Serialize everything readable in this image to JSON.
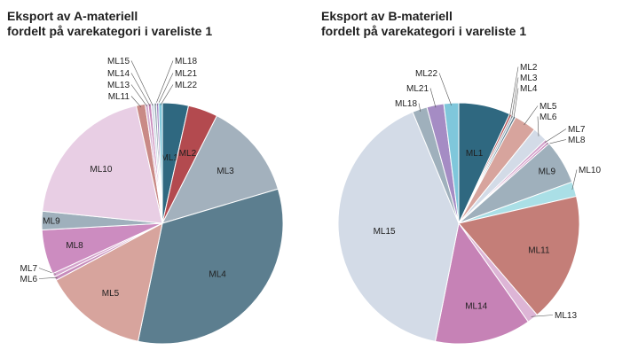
{
  "chart_data": [
    {
      "type": "pie",
      "title": [
        "Eksport av A-materiell",
        "fordelt på varekategori i vareliste 1"
      ],
      "slices": [
        {
          "label": "ML1",
          "value": 3.5,
          "color": "#2f6880"
        },
        {
          "label": "ML2",
          "value": 4.0,
          "color": "#b34a4f"
        },
        {
          "label": "ML3",
          "value": 13.0,
          "color": "#a3b1bd"
        },
        {
          "label": "ML4",
          "value": 33.0,
          "color": "#5c7e8f"
        },
        {
          "label": "ML5",
          "value": 14.0,
          "color": "#d7a49d"
        },
        {
          "label": "ML6",
          "value": 0.5,
          "color": "#c68cbc"
        },
        {
          "label": "ML7",
          "value": 0.5,
          "color": "#d4a3cc"
        },
        {
          "label": "ML8",
          "value": 6.0,
          "color": "#cc8cc0"
        },
        {
          "label": "ML9",
          "value": 2.5,
          "color": "#9fb0bc"
        },
        {
          "label": "ML10",
          "value": 20.0,
          "color": "#e8cee4"
        },
        {
          "label": "ML11",
          "value": 1.2,
          "color": "#c98a86"
        },
        {
          "label": "ML13",
          "value": 0.4,
          "color": "#d5b0d2"
        },
        {
          "label": "ML14",
          "value": 0.4,
          "color": "#c98abb"
        },
        {
          "label": "ML15",
          "value": 0.4,
          "color": "#d3dbe7"
        },
        {
          "label": "ML18",
          "value": 0.3,
          "color": "#8fa2ad"
        },
        {
          "label": "ML21",
          "value": 0.3,
          "color": "#a58cc4"
        },
        {
          "label": "ML22",
          "value": 0.5,
          "color": "#7fc7db"
        }
      ]
    },
    {
      "type": "pie",
      "title": [
        "Eksport av B-materiell",
        "fordelt på varekategori i vareliste 1"
      ],
      "slices": [
        {
          "label": "ML1",
          "value": 7.0,
          "color": "#2f6880"
        },
        {
          "label": "ML2",
          "value": 0.3,
          "color": "#b34a4f"
        },
        {
          "label": "ML3",
          "value": 0.3,
          "color": "#a3b1bd"
        },
        {
          "label": "ML4",
          "value": 0.3,
          "color": "#5c7e8f"
        },
        {
          "label": "ML5",
          "value": 3.0,
          "color": "#d7a49d"
        },
        {
          "label": "ML6",
          "value": 2.0,
          "color": "#d3dbe7"
        },
        {
          "label": "ML7",
          "value": 0.4,
          "color": "#d4a3cc"
        },
        {
          "label": "ML8",
          "value": 0.3,
          "color": "#cc8cc0"
        },
        {
          "label": "ML9",
          "value": 6.0,
          "color": "#9fb0bc"
        },
        {
          "label": "ML10",
          "value": 2.0,
          "color": "#aadfe6"
        },
        {
          "label": "ML11",
          "value": 17.5,
          "color": "#c47e78"
        },
        {
          "label": "ML13",
          "value": 1.5,
          "color": "#ddb5d6"
        },
        {
          "label": "ML14",
          "value": 13.0,
          "color": "#c682b6"
        },
        {
          "label": "ML15",
          "value": 41.0,
          "color": "#d3dbe7"
        },
        {
          "label": "ML18",
          "value": 2.0,
          "color": "#9fb0bc"
        },
        {
          "label": "ML21",
          "value": 2.3,
          "color": "#a58cc4"
        },
        {
          "label": "ML22",
          "value": 2.0,
          "color": "#7fc7db"
        }
      ]
    }
  ]
}
